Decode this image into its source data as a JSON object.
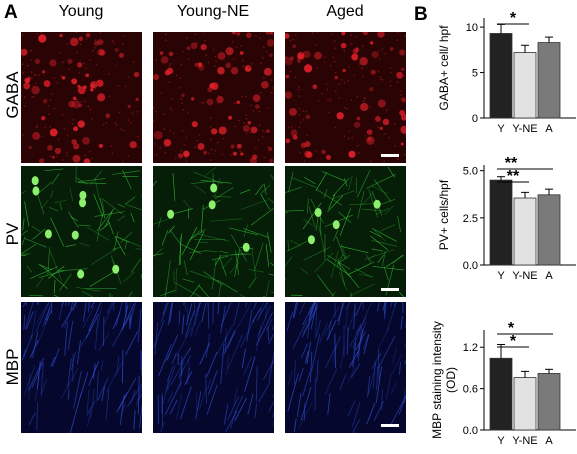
{
  "figure": {
    "panel_a_letter": "A",
    "panel_b_letter": "B",
    "columns": [
      "Young",
      "Young-NE",
      "Aged"
    ],
    "rows": [
      {
        "label": "GABA",
        "color": "#e0202a",
        "bg": "#2a0404"
      },
      {
        "label": "PV",
        "color": "#38c93c",
        "bg": "#061e08"
      },
      {
        "label": "MBP",
        "color": "#3050d8",
        "bg": "#05082c"
      }
    ]
  },
  "chart_data": [
    {
      "type": "bar",
      "categories": [
        "Y",
        "Y-NE",
        "A"
      ],
      "values": [
        9.3,
        7.2,
        8.3
      ],
      "errors": [
        1.0,
        0.8,
        0.6
      ],
      "bar_colors": [
        "#222222",
        "#e2e2e2",
        "#7a7a7a"
      ],
      "ylabel": "GABA+ cell/ hpf",
      "ylim": [
        0,
        11
      ],
      "yticks": [
        0,
        5,
        10
      ],
      "ytick_labels": [
        "0",
        "5",
        "10"
      ],
      "significance": [
        {
          "from": 0,
          "to": 1,
          "label": "*"
        }
      ]
    },
    {
      "type": "bar",
      "categories": [
        "Y",
        "Y-NE",
        "A"
      ],
      "values": [
        4.5,
        3.55,
        3.72
      ],
      "errors": [
        0.18,
        0.3,
        0.3
      ],
      "bar_colors": [
        "#222222",
        "#e2e2e2",
        "#7a7a7a"
      ],
      "ylabel": "PV+ cells/hpf",
      "ylim": [
        0,
        5.3
      ],
      "yticks": [
        0,
        2.5,
        5
      ],
      "ytick_labels": [
        "0.0",
        "2.5",
        "5.0"
      ],
      "significance": [
        {
          "from": 0,
          "to": 2,
          "label": "**"
        },
        {
          "from": 0,
          "to": 1,
          "label": "**"
        }
      ]
    },
    {
      "type": "bar",
      "categories": [
        "Y",
        "Y-NE",
        "A"
      ],
      "values": [
        1.04,
        0.76,
        0.82
      ],
      "errors": [
        0.2,
        0.09,
        0.06
      ],
      "bar_colors": [
        "#222222",
        "#e2e2e2",
        "#7a7a7a"
      ],
      "ylabel": "MBP staining intensity (OD)",
      "ylabel_lines": [
        "MBP staining intensity",
        "(OD)"
      ],
      "ylim": [
        0,
        1.45
      ],
      "yticks": [
        0,
        0.6,
        1.2
      ],
      "ytick_labels": [
        "0.0",
        "0.6",
        "1.2"
      ],
      "significance": [
        {
          "from": 0,
          "to": 2,
          "label": "*"
        },
        {
          "from": 0,
          "to": 1,
          "label": "*"
        }
      ]
    }
  ]
}
